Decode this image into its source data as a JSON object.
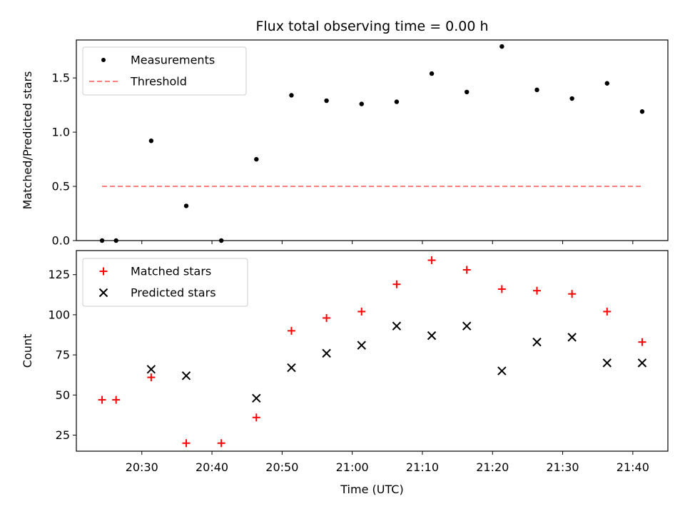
{
  "title": "Flux total observing time = 0.00 h",
  "xlabel": "Time (UTC)",
  "x_tick_labels": [
    "20:30",
    "20:40",
    "20:50",
    "21:00",
    "21:10",
    "21:20",
    "21:30",
    "21:40"
  ],
  "colors": {
    "measurements": "#000000",
    "threshold": "#ff7f7f",
    "matched": "#ff0000",
    "predicted": "#000000"
  },
  "chart_data": [
    {
      "type": "scatter",
      "ylabel": "Matched/Predicted stars",
      "x_range": [
        "20:20:40",
        "21:45:00"
      ],
      "ylim": [
        0,
        1.85
      ],
      "y_ticks": [
        "0.0",
        "0.5",
        "1.0",
        "1.5"
      ],
      "legend": "top-left",
      "series": [
        {
          "name": "Measurements",
          "marker": "dot",
          "x": [
            "20:24:20",
            "20:26:20",
            "20:31:20",
            "20:36:20",
            "20:41:20",
            "20:46:20",
            "20:51:20",
            "20:56:20",
            "21:01:20",
            "21:06:20",
            "21:11:20",
            "21:16:20",
            "21:21:20",
            "21:26:20",
            "21:31:20",
            "21:36:20",
            "21:41:20"
          ],
          "y": [
            0.0,
            0.0,
            0.92,
            0.32,
            0.0,
            0.75,
            1.34,
            1.29,
            1.26,
            1.28,
            1.54,
            1.37,
            1.79,
            1.39,
            1.31,
            1.45,
            1.19
          ]
        },
        {
          "name": "Threshold",
          "marker": "dashed-line",
          "x": [
            "20:24:20",
            "21:41:20"
          ],
          "y": [
            0.5,
            0.5
          ]
        }
      ]
    },
    {
      "type": "scatter",
      "ylabel": "Count",
      "x_range": [
        "20:20:40",
        "21:45:00"
      ],
      "ylim": [
        15,
        140
      ],
      "y_ticks": [
        "25",
        "50",
        "75",
        "100",
        "125"
      ],
      "legend": "top-left",
      "series": [
        {
          "name": "Matched stars",
          "marker": "plus",
          "x": [
            "20:24:20",
            "20:26:20",
            "20:31:20",
            "20:36:20",
            "20:41:20",
            "20:46:20",
            "20:51:20",
            "20:56:20",
            "21:01:20",
            "21:06:20",
            "21:11:20",
            "21:16:20",
            "21:21:20",
            "21:26:20",
            "21:31:20",
            "21:36:20",
            "21:41:20"
          ],
          "y": [
            47,
            47,
            61,
            20,
            20,
            36,
            90,
            98,
            102,
            119,
            134,
            128,
            116,
            115,
            113,
            102,
            83
          ]
        },
        {
          "name": "Predicted stars",
          "marker": "x",
          "x": [
            "20:31:20",
            "20:36:20",
            "20:46:20",
            "20:51:20",
            "20:56:20",
            "21:01:20",
            "21:06:20",
            "21:11:20",
            "21:16:20",
            "21:21:20",
            "21:26:20",
            "21:31:20",
            "21:36:20",
            "21:41:20"
          ],
          "y": [
            66,
            62,
            48,
            67,
            76,
            81,
            93,
            87,
            93,
            65,
            83,
            86,
            70,
            70
          ]
        }
      ]
    }
  ]
}
